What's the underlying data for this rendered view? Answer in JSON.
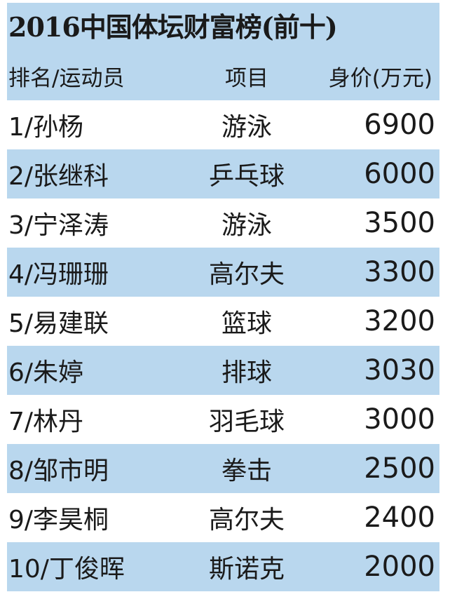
{
  "title": "2016中国体坛财富榜(前十)",
  "headers": {
    "athlete": "排名/运动员",
    "sport": "项目",
    "value": "身价(万元)"
  },
  "rows": [
    {
      "athlete": "1/孙杨",
      "sport": "游泳",
      "value": "6900"
    },
    {
      "athlete": "2/张继科",
      "sport": "乒乓球",
      "value": "6000"
    },
    {
      "athlete": "3/宁泽涛",
      "sport": "游泳",
      "value": "3500"
    },
    {
      "athlete": "4/冯珊珊",
      "sport": "高尔夫",
      "value": "3300"
    },
    {
      "athlete": "5/易建联",
      "sport": "篮球",
      "value": "3200"
    },
    {
      "athlete": "6/朱婷",
      "sport": "排球",
      "value": "3030"
    },
    {
      "athlete": "7/林丹",
      "sport": "羽毛球",
      "value": "3000"
    },
    {
      "athlete": "8/邹市明",
      "sport": "拳击",
      "value": "2500"
    },
    {
      "athlete": "9/李昊桐",
      "sport": "高尔夫",
      "value": "2400"
    },
    {
      "athlete": "10/丁俊晖",
      "sport": "斯诺克",
      "value": "2000"
    }
  ],
  "colors": {
    "band": "#b9d7ee",
    "text": "#1a1a1a"
  }
}
